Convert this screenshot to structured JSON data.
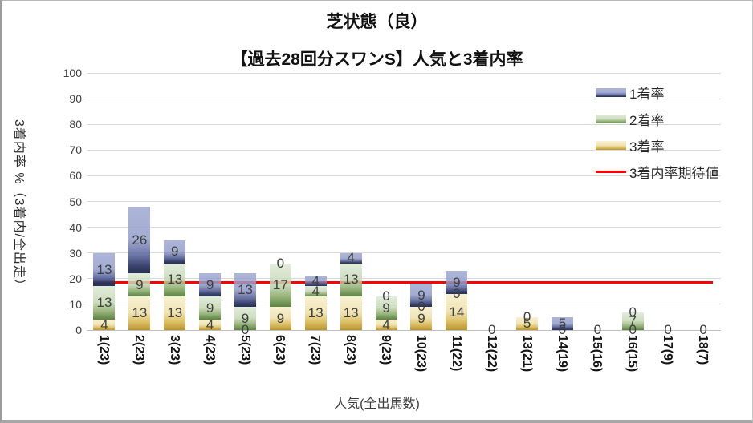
{
  "title": "芝状態（良）",
  "subtitle": "【過去28回分スワンS】人気と3着内率",
  "y_axis": {
    "title": "3着内率 %（3着内/全出走）",
    "ticks": [
      0,
      10,
      20,
      30,
      40,
      50,
      60,
      70,
      80,
      90,
      100
    ]
  },
  "x_axis": {
    "title": "人気(全出馬数)"
  },
  "legend": [
    {
      "label": "1着率",
      "series": "win",
      "type": "bar"
    },
    {
      "label": "2着率",
      "series": "place2",
      "type": "bar"
    },
    {
      "label": "3着率",
      "series": "place3",
      "type": "bar"
    },
    {
      "label": "3着内率期待値",
      "series": "expected",
      "type": "line"
    }
  ],
  "colors": {
    "win": "#5a66a0",
    "place2": "#81a563",
    "place3": "#d9b64a",
    "expected_line": "#ff0000",
    "grid": "#d9d9d9",
    "label_text": "#3f3f3f"
  },
  "chart_data": {
    "type": "bar",
    "subtype": "stacked",
    "title": "芝状態（良）【過去28回分スワンS】人気と3着内率",
    "xlabel": "人気(全出馬数)",
    "ylabel": "3着内率 %（3着内/全出走）",
    "ylim": [
      0,
      100
    ],
    "grid": true,
    "legend_position": "top-right",
    "categories": [
      "1(23)",
      "2(23)",
      "3(23)",
      "4(23)",
      "5(23)",
      "6(23)",
      "7(23)",
      "8(23)",
      "9(23)",
      "10(23)",
      "11(22)",
      "12(22)",
      "13(21)",
      "14(19)",
      "15(16)",
      "16(15)",
      "17(9)",
      "18(7)"
    ],
    "series": [
      {
        "name": "1着率",
        "key": "win",
        "color": "#5a66a0",
        "values": [
          13,
          26,
          9,
          9,
          13,
          0,
          4,
          4,
          0,
          9,
          9,
          0,
          0,
          5,
          0,
          0,
          0,
          0
        ]
      },
      {
        "name": "2着率",
        "key": "place2",
        "color": "#81a563",
        "values": [
          13,
          9,
          13,
          9,
          9,
          17,
          4,
          13,
          9,
          0,
          0,
          0,
          0,
          0,
          0,
          7,
          0,
          0
        ]
      },
      {
        "name": "3着率",
        "key": "place3",
        "color": "#d9b64a",
        "values": [
          4,
          13,
          13,
          4,
          0,
          9,
          13,
          13,
          4,
          9,
          14,
          0,
          5,
          0,
          0,
          0,
          0,
          0
        ]
      }
    ],
    "expected_line": {
      "name": "3着内率期待値",
      "value": 18.5,
      "color": "#ff0000"
    }
  }
}
